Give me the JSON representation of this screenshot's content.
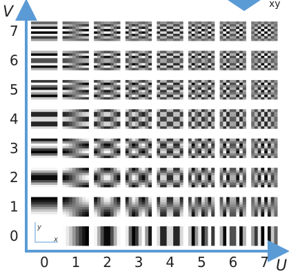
{
  "figure": {
    "corner_label": "xy",
    "axis_u_label": "U",
    "axis_v_label": "V",
    "u_ticks": [
      "0",
      "1",
      "2",
      "3",
      "4",
      "5",
      "6",
      "7"
    ],
    "v_ticks": [
      "0",
      "1",
      "2",
      "3",
      "4",
      "5",
      "6",
      "7"
    ],
    "inset_x_label": "x",
    "inset_y_label": "y",
    "grid_size": 8,
    "colors": {
      "axis": "#5b9bd5",
      "text": "#222222"
    }
  }
}
